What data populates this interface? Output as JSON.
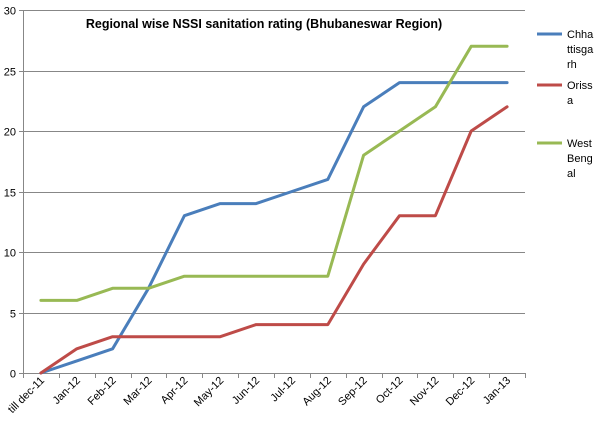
{
  "chart_data": {
    "type": "line",
    "title": "Regional wise NSSI sanitation rating (Bhubaneswar Region)",
    "xlabel": "",
    "ylabel": "",
    "categories": [
      "till dec-11",
      "Jan-12",
      "Feb-12",
      "Mar-12",
      "Apr-12",
      "May-12",
      "Jun-12",
      "Jul-12",
      "Aug-12",
      "Sep-12",
      "Oct-12",
      "Nov-12",
      "Dec-12",
      "Jan-13"
    ],
    "ylim": [
      0,
      30
    ],
    "yticks": [
      0,
      5,
      10,
      15,
      20,
      25,
      30
    ],
    "grid": true,
    "legend_position": "right",
    "series": [
      {
        "name": "Chhattisgarh",
        "legend_lines": [
          "Chha",
          "ttisga",
          "rh"
        ],
        "color": "#4a7ebb",
        "values": [
          0,
          1,
          2,
          7,
          13,
          14,
          14,
          15,
          16,
          22,
          24,
          24,
          24,
          24
        ]
      },
      {
        "name": "Orissa",
        "legend_lines": [
          "Oriss",
          "a"
        ],
        "color": "#be4b48",
        "values": [
          0,
          2,
          3,
          3,
          3,
          3,
          4,
          4,
          4,
          9,
          13,
          13,
          20,
          22
        ]
      },
      {
        "name": "West Bengal",
        "legend_lines": [
          "West",
          "Beng",
          "al"
        ],
        "color": "#98b954",
        "values": [
          6,
          6,
          7,
          7,
          8,
          8,
          8,
          8,
          8,
          18,
          20,
          22,
          27,
          27
        ]
      }
    ]
  }
}
